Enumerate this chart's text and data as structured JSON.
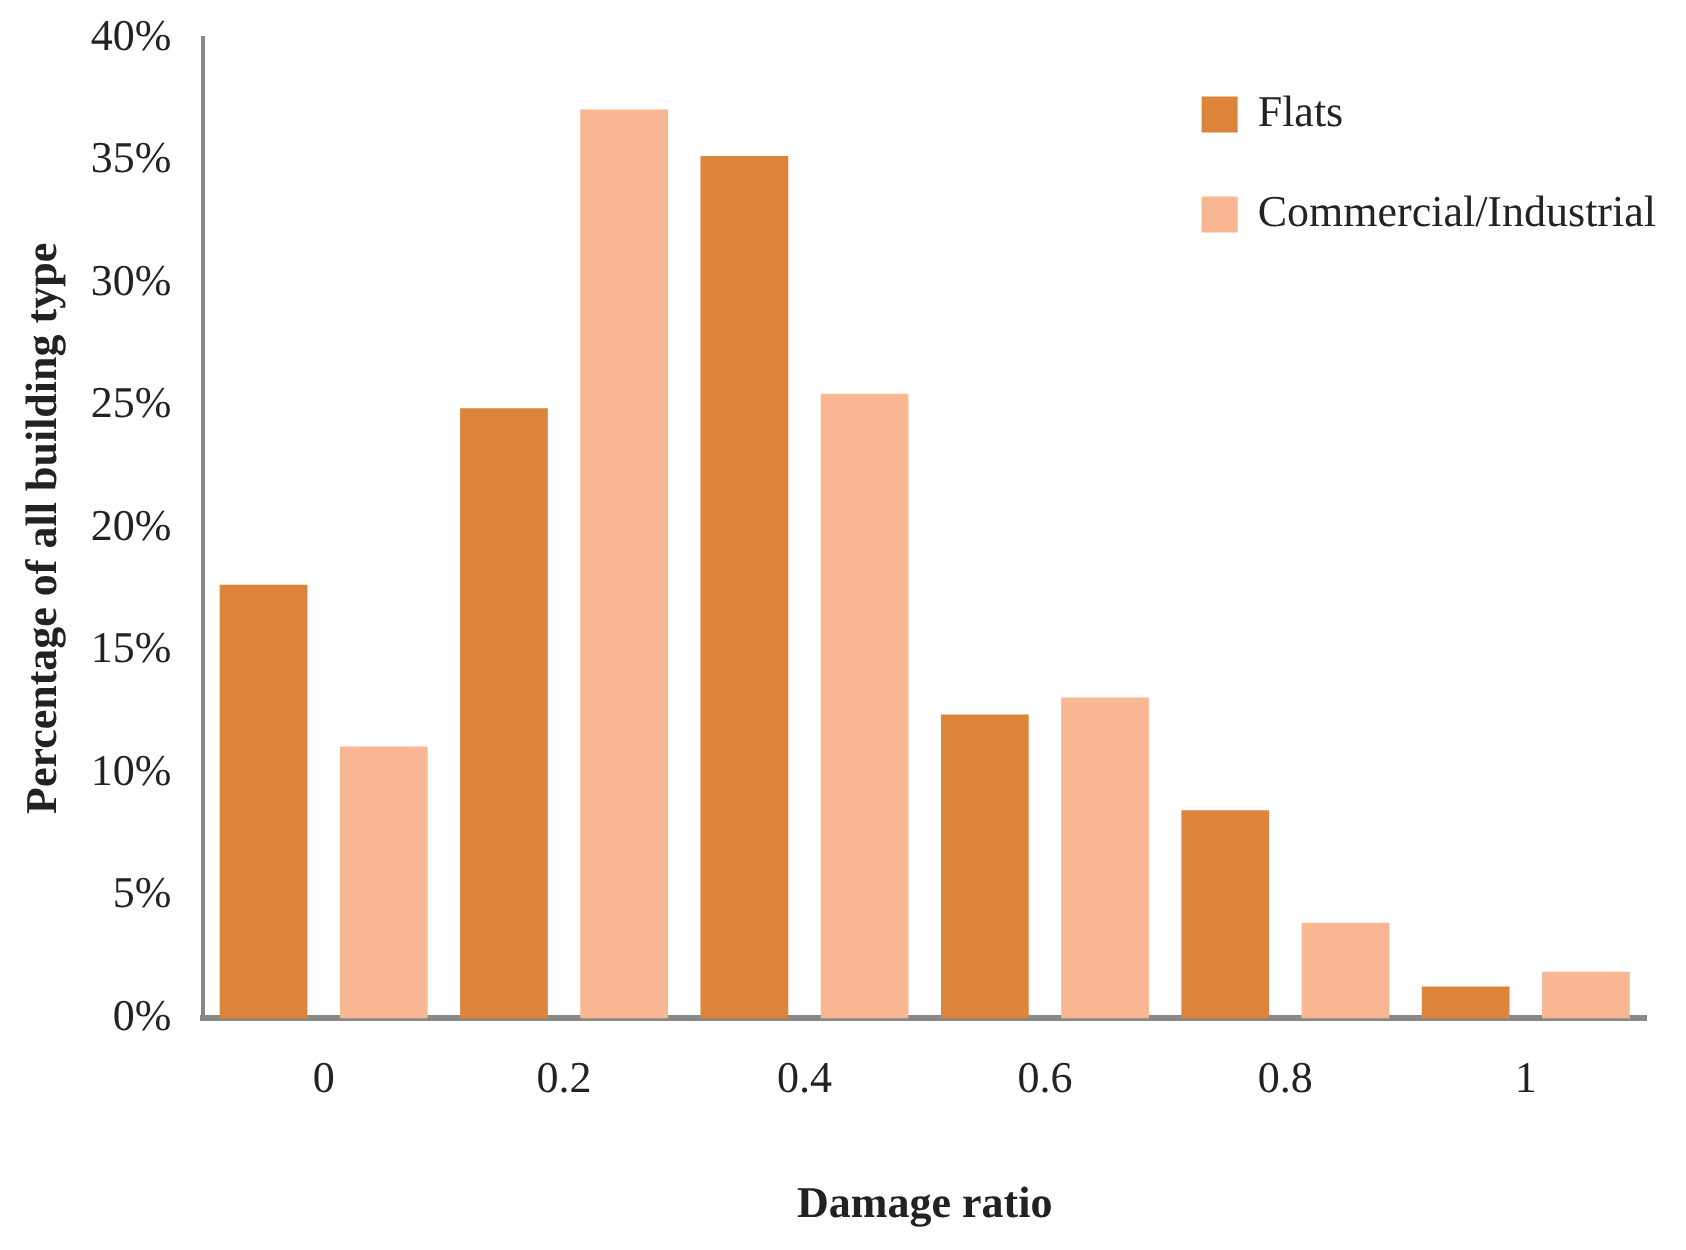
{
  "chart_data": {
    "type": "bar",
    "xlabel": "Damage ratio",
    "ylabel": "Percentage of all building type",
    "categories": [
      "0",
      "0.2",
      "0.4",
      "0.6",
      "0.8",
      "1"
    ],
    "series": [
      {
        "name": "Flats",
        "color": "#dc843a",
        "values": [
          17.7,
          24.9,
          35.2,
          12.4,
          8.5,
          1.3
        ]
      },
      {
        "name": "Commercial/Industrial",
        "color": "#f9b692",
        "values": [
          11.1,
          37.1,
          25.5,
          13.1,
          3.9,
          1.9
        ]
      }
    ],
    "ylim": [
      0,
      40
    ],
    "yticks": [
      {
        "value": 0,
        "label": "0%"
      },
      {
        "value": 5,
        "label": "5%"
      },
      {
        "value": 10,
        "label": "10%"
      },
      {
        "value": 15,
        "label": "15%"
      },
      {
        "value": 20,
        "label": "20%"
      },
      {
        "value": 25,
        "label": "25%"
      },
      {
        "value": 30,
        "label": "30%"
      },
      {
        "value": 35,
        "label": "35%"
      },
      {
        "value": 40,
        "label": "40%"
      }
    ],
    "grid": false,
    "legend": "top right"
  }
}
